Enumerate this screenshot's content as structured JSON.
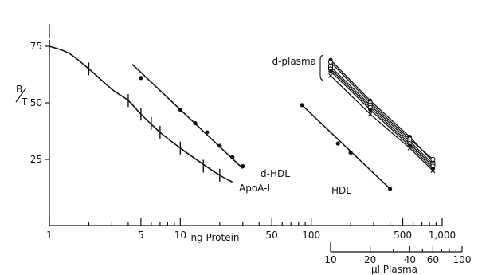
{
  "chart_data": {
    "type": "line",
    "title": "",
    "ylabel": "B/T",
    "ylabel_top": "B",
    "ylabel_bottom": "T",
    "ylim": [
      10,
      82
    ],
    "yticks": [
      25,
      50,
      75
    ],
    "x_primary": {
      "label": "ng Protein",
      "scale": "log",
      "lim": [
        1,
        1000
      ],
      "major_ticks": [
        1,
        5,
        10,
        50,
        100,
        500,
        1000
      ],
      "tick_labels": [
        "1",
        "5",
        "10",
        "50",
        "100",
        "500",
        "1,000"
      ],
      "minor_ticks": [
        2,
        3,
        4,
        6,
        7,
        8,
        9,
        20,
        30,
        40,
        60,
        70,
        80,
        90,
        200,
        300,
        400,
        600,
        700,
        800,
        900
      ]
    },
    "x_secondary": {
      "label": "µl Plasma",
      "scale": "log",
      "lim": [
        10,
        100
      ],
      "major_ticks": [
        10,
        20,
        40,
        60,
        100
      ],
      "tick_labels": [
        "10",
        "20",
        "40",
        "60",
        "100"
      ]
    },
    "series": [
      {
        "name": "ApoA-I",
        "axis": "primary",
        "marker": "vbar",
        "x": [
          1,
          2,
          4,
          5,
          6,
          7,
          10,
          15,
          20
        ],
        "y": [
          75,
          65,
          51,
          45,
          41,
          37,
          30,
          22,
          18
        ],
        "curve_x": [
          1,
          1.4,
          2,
          3,
          4,
          5,
          7,
          10,
          14,
          20,
          25
        ],
        "curve_y": [
          75,
          72,
          65,
          56,
          51,
          45,
          37,
          30,
          24,
          18,
          15
        ]
      },
      {
        "name": "d-HDL",
        "axis": "primary",
        "marker": "dot",
        "x": [
          5,
          10,
          13,
          16,
          20,
          25,
          30
        ],
        "y": [
          61,
          47,
          41,
          37,
          31,
          26,
          22
        ],
        "curve_x": [
          4.3,
          30
        ],
        "curve_y": [
          67,
          21
        ]
      },
      {
        "name": "HDL",
        "axis": "primary",
        "marker": "dot",
        "x": [
          85,
          160,
          200,
          400
        ],
        "y": [
          49,
          32,
          28,
          12
        ],
        "curve_x": [
          85,
          400
        ],
        "curve_y": [
          49,
          12
        ]
      }
    ],
    "plasma_series": {
      "name": "d-plasma",
      "axis": "secondary",
      "lines": [
        {
          "x": [
            10,
            20,
            40,
            60
          ],
          "y": [
            69,
            51,
            35,
            24
          ]
        },
        {
          "x": [
            10,
            20,
            40,
            60
          ],
          "y": [
            68,
            50,
            34,
            25
          ]
        },
        {
          "x": [
            10,
            20,
            40,
            60
          ],
          "y": [
            66,
            49,
            33,
            23
          ]
        },
        {
          "x": [
            10,
            20,
            40,
            60
          ],
          "y": [
            65,
            48,
            32,
            22
          ]
        },
        {
          "x": [
            10,
            20,
            40,
            60
          ],
          "y": [
            64,
            47,
            31,
            21
          ]
        },
        {
          "x": [
            10,
            20,
            40,
            60
          ],
          "y": [
            62,
            45,
            30,
            20
          ]
        }
      ]
    },
    "labels": {
      "apoa1": "ApoA-I",
      "dhdl": "d-HDL",
      "hdl": "HDL",
      "dplasma": "d-plasma"
    }
  }
}
